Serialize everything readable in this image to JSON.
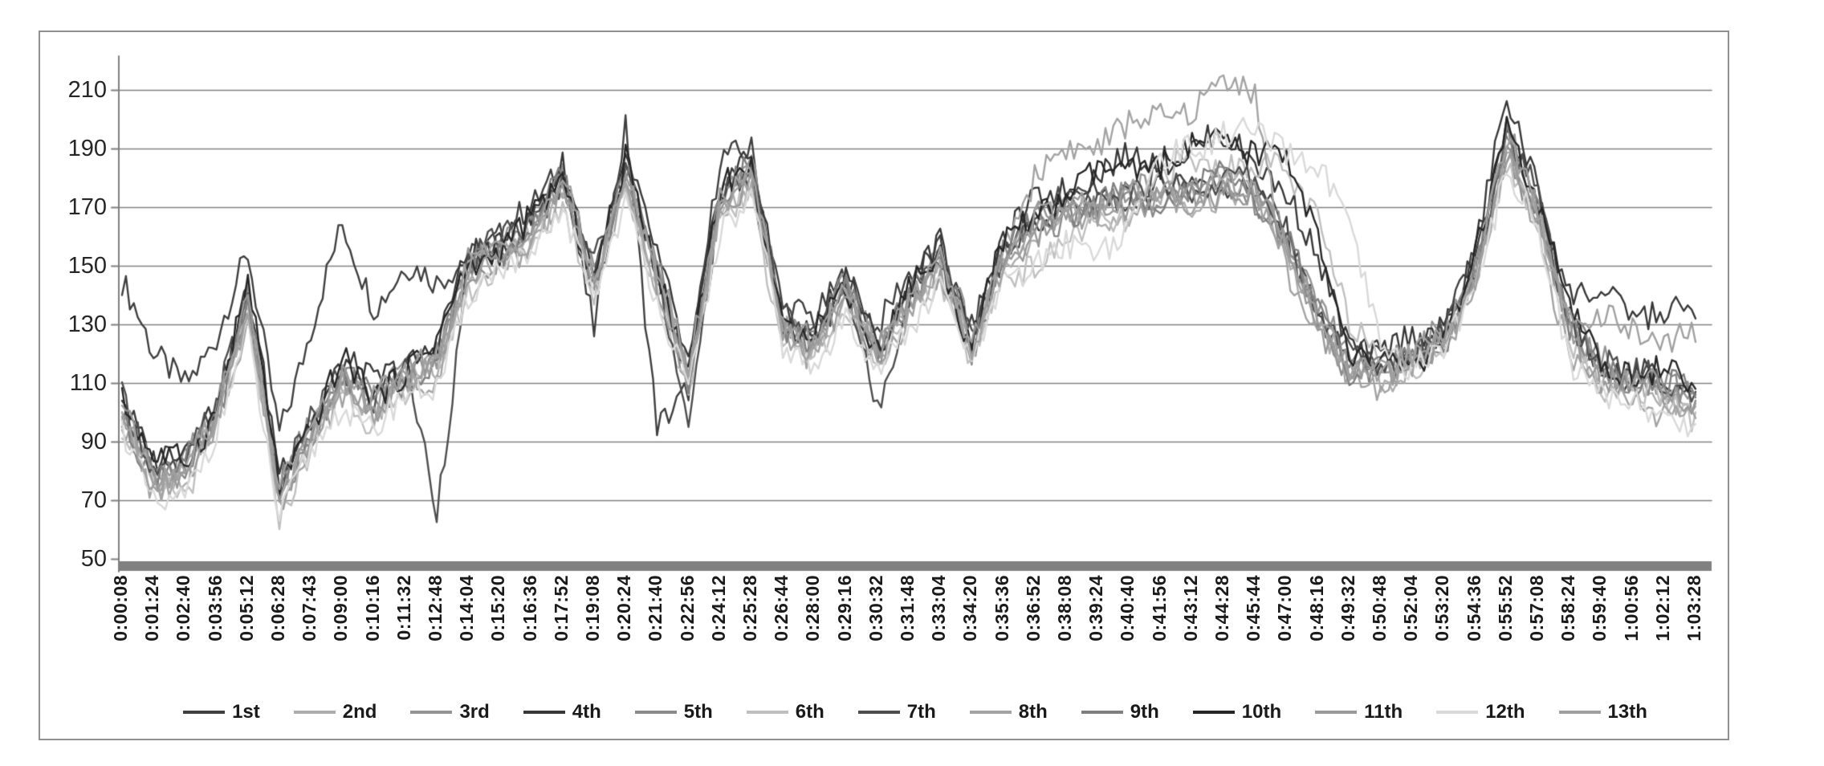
{
  "figure": {
    "background": "#ffffff",
    "frame_border_color": "#909090"
  },
  "chart_data": {
    "type": "line",
    "title": "",
    "xlabel": "",
    "ylabel": "",
    "ylim": [
      50,
      215
    ],
    "grid": "horizontal",
    "legend_position": "bottom",
    "colors": {
      "gridline": "#808080",
      "axis_line": "#7f7f7f",
      "axis_bar": "#808080",
      "tick_text": "#262626",
      "label_text": "#1a1a1a"
    },
    "y_ticks": [
      210,
      190,
      170,
      150,
      130,
      110,
      90,
      70,
      50
    ],
    "x_tick_labels": [
      "0:00:08",
      "0:01:24",
      "0:02:40",
      "0:03:56",
      "0:05:12",
      "0:06:28",
      "0:07:43",
      "0:09:00",
      "0:10:16",
      "0:11:32",
      "0:12:48",
      "0:14:04",
      "0:15:20",
      "0:16:36",
      "0:17:52",
      "0:19:08",
      "0:20:24",
      "0:21:40",
      "0:22:56",
      "0:24:12",
      "0:25:28",
      "0:26:44",
      "0:28:00",
      "0:29:16",
      "0:30:32",
      "0:31:48",
      "0:33:04",
      "0:34:20",
      "0:35:36",
      "0:36:52",
      "0:38:08",
      "0:39:24",
      "0:40:40",
      "0:41:56",
      "0:43:12",
      "0:44:28",
      "0:45:44",
      "0:47:00",
      "0:48:16",
      "0:49:32",
      "0:50:48",
      "0:52:04",
      "0:53:20",
      "0:54:36",
      "0:55:52",
      "0:57:08",
      "0:58:24",
      "0:59:40",
      "1:00:56",
      "1:02:12",
      "1:03:28"
    ],
    "series": [
      {
        "name": "1st",
        "color": "#3f3f3f",
        "values": [
          145,
          118,
          112,
          125,
          152,
          95,
          128,
          162,
          138,
          150,
          142,
          155,
          160,
          168,
          186,
          128,
          195,
          98,
          108,
          185,
          192,
          135,
          130,
          150,
          128,
          145,
          158,
          128,
          155,
          165,
          170,
          172,
          175,
          176,
          178,
          180,
          176,
          160,
          135,
          118,
          116,
          120,
          126,
          152,
          200,
          172,
          130,
          116,
          112,
          110,
          106
        ]
      },
      {
        "name": "2nd",
        "color": "#adadad",
        "values": [
          98,
          76,
          78,
          96,
          136,
          70,
          90,
          110,
          100,
          110,
          116,
          146,
          153,
          160,
          176,
          143,
          180,
          146,
          110,
          170,
          180,
          126,
          122,
          140,
          118,
          136,
          150,
          120,
          150,
          161,
          166,
          168,
          170,
          172,
          172,
          176,
          172,
          156,
          130,
          113,
          112,
          116,
          122,
          146,
          190,
          166,
          126,
          112,
          108,
          106,
          102
        ]
      },
      {
        "name": "3rd",
        "color": "#949494",
        "values": [
          102,
          80,
          82,
          100,
          140,
          74,
          94,
          114,
          104,
          114,
          120,
          150,
          157,
          164,
          180,
          147,
          184,
          150,
          114,
          174,
          184,
          130,
          126,
          144,
          122,
          140,
          154,
          124,
          154,
          165,
          170,
          172,
          174,
          176,
          176,
          180,
          176,
          160,
          134,
          117,
          116,
          120,
          126,
          150,
          194,
          170,
          130,
          116,
          112,
          110,
          106
        ]
      },
      {
        "name": "4th",
        "color": "#383838",
        "values": [
          108,
          84,
          86,
          104,
          144,
          78,
          98,
          118,
          108,
          118,
          124,
          152,
          158,
          166,
          182,
          150,
          186,
          152,
          118,
          176,
          186,
          132,
          128,
          146,
          124,
          142,
          156,
          126,
          158,
          170,
          178,
          182,
          185,
          188,
          190,
          192,
          188,
          175,
          150,
          125,
          120,
          124,
          130,
          155,
          205,
          178,
          140,
          138,
          136,
          134,
          132
        ]
      },
      {
        "name": "5th",
        "color": "#8a8a8a",
        "values": [
          100,
          78,
          80,
          98,
          137,
          72,
          92,
          112,
          102,
          112,
          118,
          148,
          155,
          162,
          178,
          145,
          182,
          148,
          112,
          172,
          182,
          128,
          124,
          142,
          120,
          138,
          152,
          122,
          152,
          163,
          168,
          170,
          172,
          174,
          174,
          178,
          174,
          158,
          132,
          115,
          114,
          118,
          124,
          148,
          191,
          168,
          128,
          114,
          110,
          108,
          104
        ]
      },
      {
        "name": "6th",
        "color": "#bfbfbf",
        "values": [
          95,
          73,
          75,
          93,
          133,
          67,
          87,
          107,
          97,
          107,
          113,
          143,
          150,
          157,
          173,
          140,
          177,
          143,
          107,
          167,
          177,
          123,
          119,
          137,
          115,
          133,
          147,
          117,
          145,
          152,
          158,
          162,
          168,
          180,
          184,
          186,
          184,
          180,
          168,
          130,
          118,
          116,
          122,
          146,
          188,
          164,
          124,
          110,
          106,
          104,
          100
        ]
      },
      {
        "name": "7th",
        "color": "#4d4d4d",
        "values": [
          103,
          81,
          83,
          101,
          141,
          75,
          95,
          115,
          105,
          115,
          68,
          151,
          158,
          165,
          181,
          148,
          185,
          151,
          90,
          175,
          185,
          131,
          127,
          145,
          97,
          141,
          155,
          125,
          155,
          166,
          171,
          173,
          175,
          177,
          177,
          181,
          177,
          161,
          135,
          118,
          117,
          121,
          127,
          151,
          196,
          171,
          131,
          117,
          113,
          111,
          107
        ]
      },
      {
        "name": "8th",
        "color": "#a3a3a3",
        "values": [
          97,
          75,
          77,
          95,
          135,
          69,
          89,
          109,
          99,
          109,
          115,
          145,
          152,
          159,
          175,
          142,
          179,
          145,
          109,
          169,
          179,
          125,
          121,
          139,
          117,
          135,
          149,
          119,
          158,
          178,
          190,
          193,
          197,
          200,
          205,
          213,
          208,
          150,
          125,
          112,
          111,
          115,
          121,
          145,
          186,
          162,
          122,
          108,
          104,
          102,
          98
        ]
      },
      {
        "name": "9th",
        "color": "#7f7f7f",
        "values": [
          101,
          79,
          81,
          99,
          139,
          73,
          93,
          113,
          103,
          113,
          119,
          149,
          156,
          163,
          179,
          146,
          183,
          149,
          113,
          173,
          183,
          129,
          125,
          143,
          121,
          139,
          153,
          123,
          153,
          164,
          169,
          171,
          173,
          175,
          175,
          179,
          175,
          159,
          133,
          116,
          115,
          119,
          125,
          149,
          193,
          169,
          129,
          115,
          111,
          109,
          105
        ]
      },
      {
        "name": "10th",
        "color": "#262626",
        "values": [
          106,
          82,
          84,
          102,
          142,
          76,
          96,
          116,
          106,
          116,
          122,
          150,
          157,
          164,
          180,
          147,
          184,
          150,
          116,
          174,
          184,
          130,
          126,
          144,
          122,
          140,
          154,
          124,
          156,
          168,
          175,
          180,
          183,
          186,
          188,
          193,
          190,
          186,
          160,
          120,
          114,
          118,
          124,
          150,
          198,
          172,
          132,
          118,
          114,
          112,
          108
        ]
      },
      {
        "name": "11th",
        "color": "#999999",
        "values": [
          99,
          77,
          79,
          97,
          137,
          71,
          91,
          111,
          101,
          111,
          117,
          147,
          154,
          161,
          177,
          144,
          181,
          147,
          111,
          171,
          181,
          127,
          123,
          141,
          119,
          137,
          151,
          121,
          151,
          162,
          167,
          169,
          171,
          173,
          173,
          177,
          173,
          157,
          131,
          114,
          113,
          117,
          123,
          147,
          191,
          167,
          127,
          113,
          109,
          107,
          103
        ]
      },
      {
        "name": "12th",
        "color": "#d9d9d9",
        "values": [
          92,
          70,
          72,
          90,
          130,
          64,
          84,
          104,
          94,
          104,
          110,
          140,
          147,
          154,
          170,
          137,
          174,
          140,
          104,
          164,
          174,
          120,
          116,
          134,
          112,
          130,
          144,
          114,
          146,
          150,
          155,
          158,
          162,
          185,
          192,
          195,
          193,
          190,
          185,
          160,
          125,
          115,
          120,
          144,
          184,
          160,
          120,
          106,
          102,
          100,
          96
        ]
      },
      {
        "name": "13th",
        "color": "#a0a0a0",
        "values": [
          100,
          78,
          80,
          98,
          138,
          72,
          92,
          112,
          102,
          112,
          118,
          148,
          155,
          162,
          178,
          145,
          182,
          148,
          112,
          172,
          182,
          128,
          124,
          142,
          120,
          138,
          152,
          122,
          152,
          163,
          168,
          170,
          172,
          174,
          174,
          178,
          174,
          158,
          132,
          115,
          114,
          118,
          124,
          148,
          192,
          168,
          135,
          130,
          128,
          126,
          124
        ]
      }
    ]
  }
}
